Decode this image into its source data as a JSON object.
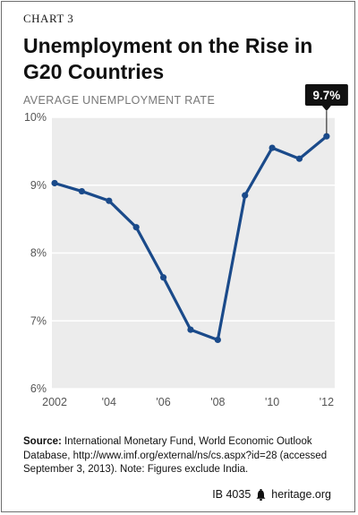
{
  "header": {
    "chart_number": "CHART 3",
    "title": "Unemployment on the Rise in G20 Countries",
    "subtitle": "AVERAGE UNEMPLOYMENT RATE"
  },
  "chart_data": {
    "type": "line",
    "title": "Unemployment on the Rise in G20 Countries",
    "ylabel": "AVERAGE UNEMPLOYMENT RATE",
    "xlabel": "",
    "x": [
      2002,
      2003,
      2004,
      2005,
      2006,
      2007,
      2008,
      2009,
      2010,
      2011,
      2012
    ],
    "series": [
      {
        "values": [
          9.03,
          8.91,
          8.77,
          8.38,
          7.64,
          6.87,
          6.72,
          8.85,
          9.55,
          9.39,
          9.72
        ]
      }
    ],
    "xlim": [
      2001.9,
      2012.3
    ],
    "ylim": [
      6,
      10
    ],
    "yticks": [
      6,
      7,
      8,
      9,
      10
    ],
    "ytick_labels": [
      "6%",
      "7%",
      "8%",
      "9%",
      "10%"
    ],
    "xticks": [
      2002,
      2004,
      2006,
      2008,
      2010,
      2012
    ],
    "xtick_labels": [
      "2002",
      "'04",
      "'06",
      "'08",
      "'10",
      "'12"
    ],
    "annotation": {
      "x": 2012,
      "text": "9.7%"
    },
    "grid": true,
    "line_color": "#1a4a8a",
    "plot_background": "#ececec",
    "annotation_background": "#111111"
  },
  "source": {
    "label": "Source:",
    "text": "International Monetary Fund, World Economic Outlook Database, http://www.imf.org/external/ns/cs.aspx?id=28 (accessed September 3, 2013). Note: Figures exclude India."
  },
  "footer": {
    "brief_id": "IB 4035",
    "icon": "liberty-bell-icon",
    "site": "heritage.org"
  }
}
